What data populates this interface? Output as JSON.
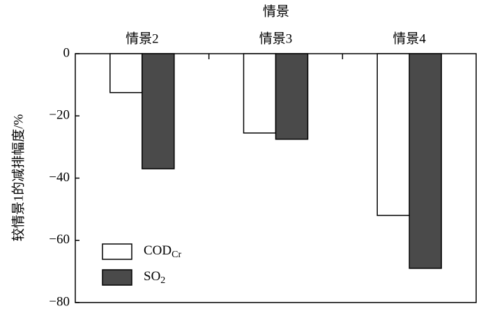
{
  "chart_data": {
    "type": "bar",
    "x_label": "情景",
    "y_label": "较情景1的减排幅度/%",
    "categories": [
      "情景2",
      "情景3",
      "情景4"
    ],
    "series": [
      {
        "name": "COD",
        "name_subscript": "Cr",
        "color": "#ffffff",
        "values": [
          -12.5,
          -25.5,
          -52
        ]
      },
      {
        "name": "SO",
        "name_subscript": "2",
        "color": "#4a4a4a",
        "values": [
          -37,
          -27.5,
          -69
        ]
      }
    ],
    "ylim": [
      -80,
      0
    ],
    "yticks": [
      {
        "value": 0,
        "label": "0"
      },
      {
        "value": -20,
        "label": "−20"
      },
      {
        "value": -40,
        "label": "−40"
      },
      {
        "value": -60,
        "label": "−60"
      },
      {
        "value": -80,
        "label": "−80"
      }
    ],
    "legend": "lower left"
  }
}
